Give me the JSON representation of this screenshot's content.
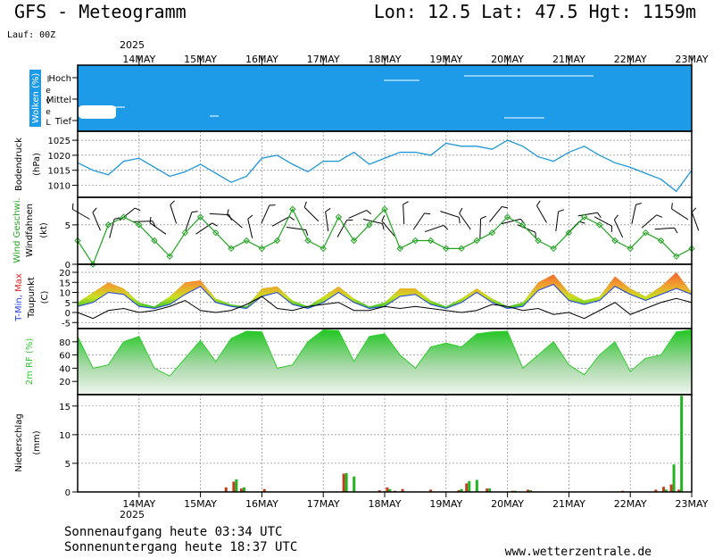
{
  "header": {
    "title": "GFS - Meteogramm",
    "location": "Lon: 12.5 Lat: 47.5 Hgt: 1159m",
    "run": "Lauf: 00Z",
    "year_top": "2025",
    "year_bottom": "2025"
  },
  "footer": {
    "sunrise": "Sonnenaufgang heute 03:34 UTC",
    "sunset": "Sonnenuntergang heute 18:37 UTC",
    "site": "www.wetterzentrale.de"
  },
  "colors": {
    "cloud": "#1e9be8",
    "pressure_line": "#1e96d8",
    "wind_line": "#22a322",
    "tmin": "#2040e0",
    "tmax": "#e02020",
    "dew": "#000000",
    "rh": "#2ecc2e",
    "precip_rain": "#c04020",
    "precip_conv": "#22b222"
  },
  "chart_data": [
    {
      "type": "heatmap",
      "panel": "clouds",
      "ylabel": "Wolken (%)",
      "ylabel2": "Level",
      "levels": [
        "Hoch",
        "Mittel",
        "Tief"
      ],
      "xlim": [
        0,
        240
      ],
      "x_tick_labels": [
        "14MAY",
        "15MAY",
        "16MAY",
        "17MAY",
        "18MAY",
        "19MAY",
        "20MAY",
        "21MAY",
        "22MAY",
        "23MAY"
      ]
    },
    {
      "type": "line",
      "panel": "pressure",
      "ylabel": "Bodendruck",
      "yunit": "(hPa)",
      "ylim": [
        1006,
        1028
      ],
      "yticks": [
        1010,
        1015,
        1020,
        1025
      ],
      "x": [
        0,
        6,
        12,
        18,
        24,
        30,
        36,
        42,
        48,
        54,
        60,
        66,
        72,
        78,
        84,
        90,
        96,
        102,
        108,
        114,
        120,
        126,
        132,
        138,
        144,
        150,
        156,
        162,
        168,
        174,
        180,
        186,
        192,
        198,
        204,
        210,
        216,
        222,
        228,
        234,
        240
      ],
      "values": [
        1017.5,
        1015,
        1013.5,
        1018,
        1019,
        1016,
        1013,
        1014.5,
        1017,
        1014,
        1011,
        1013,
        1019,
        1020,
        1017,
        1014.5,
        1018,
        1018,
        1021,
        1017,
        1019,
        1021,
        1021,
        1020,
        1024,
        1023,
        1023,
        1022,
        1025,
        1023,
        1019.5,
        1018,
        1021,
        1023,
        1020,
        1017.5,
        1016,
        1014,
        1012,
        1008,
        1015
      ]
    },
    {
      "type": "line",
      "panel": "wind",
      "ylabel": "Wind Geschwi.",
      "ylabel2": "Windfahnen",
      "yunit": "(kt)",
      "ylim": [
        0,
        8.5
      ],
      "yticks": [
        0,
        5
      ],
      "x": [
        0,
        6,
        12,
        18,
        24,
        30,
        36,
        42,
        48,
        54,
        60,
        66,
        72,
        78,
        84,
        90,
        96,
        102,
        108,
        114,
        120,
        126,
        132,
        138,
        144,
        150,
        156,
        162,
        168,
        174,
        180,
        186,
        192,
        198,
        204,
        210,
        216,
        222,
        228,
        234,
        240
      ],
      "values": [
        3,
        0,
        5,
        6,
        5,
        3,
        1,
        4,
        6,
        4,
        2,
        3,
        2,
        3,
        7,
        3,
        2,
        6,
        3,
        5,
        7,
        2,
        3,
        3,
        2,
        2,
        3,
        4,
        6,
        5,
        3,
        2,
        4,
        6,
        5,
        3,
        2,
        4,
        3,
        1,
        2
      ]
    },
    {
      "type": "area",
      "panel": "temperature",
      "ylabel": "T-Min, Max",
      "ylabel2": "Taupunkt",
      "yunit": "(C)",
      "ylim": [
        -8,
        24
      ],
      "yticks": [
        -5,
        0,
        5,
        10,
        15,
        20
      ],
      "x": [
        0,
        6,
        12,
        18,
        24,
        30,
        36,
        42,
        48,
        54,
        60,
        66,
        72,
        78,
        84,
        90,
        96,
        102,
        108,
        114,
        120,
        126,
        132,
        138,
        144,
        150,
        156,
        162,
        168,
        174,
        180,
        186,
        192,
        198,
        204,
        210,
        216,
        222,
        228,
        234,
        240
      ],
      "series": [
        {
          "name": "T-Min",
          "values": [
            3,
            5,
            10,
            9,
            3,
            2,
            4,
            9,
            13,
            5,
            3,
            2,
            8,
            10,
            4,
            2,
            5,
            10,
            5,
            2,
            3,
            8,
            9,
            4,
            2,
            5,
            10,
            5,
            2,
            3,
            11,
            14,
            6,
            4,
            6,
            13,
            9,
            6,
            9,
            12,
            9
          ]
        },
        {
          "name": "Max",
          "values": [
            5,
            10,
            15,
            12,
            5,
            3,
            8,
            15,
            16,
            7,
            4,
            3,
            12,
            13,
            6,
            3,
            8,
            13,
            7,
            3,
            5,
            12,
            12,
            6,
            3,
            7,
            12,
            7,
            3,
            5,
            15,
            19,
            10,
            6,
            8,
            18,
            12,
            8,
            13,
            20,
            10
          ]
        },
        {
          "name": "Taupunkt",
          "values": [
            0,
            -3,
            1,
            2,
            0,
            1,
            3,
            6,
            1,
            0,
            1,
            4,
            8,
            2,
            1,
            3,
            4,
            5,
            1,
            1,
            3,
            2,
            3,
            2,
            1,
            0,
            1,
            4,
            3,
            1,
            2,
            -1,
            0,
            -3,
            1,
            5,
            -1,
            2,
            5,
            7,
            5
          ]
        }
      ]
    },
    {
      "type": "area",
      "panel": "humidity",
      "ylabel": "2m RF (%)",
      "ylim": [
        0,
        100
      ],
      "yticks": [
        20,
        40,
        60,
        80
      ],
      "x": [
        0,
        6,
        12,
        18,
        24,
        30,
        36,
        42,
        48,
        54,
        60,
        66,
        72,
        78,
        84,
        90,
        96,
        102,
        108,
        114,
        120,
        126,
        132,
        138,
        144,
        150,
        156,
        162,
        168,
        174,
        180,
        186,
        192,
        198,
        204,
        210,
        216,
        222,
        228,
        234,
        240
      ],
      "values": [
        88,
        40,
        45,
        80,
        88,
        40,
        28,
        55,
        82,
        50,
        85,
        96,
        95,
        40,
        45,
        80,
        98,
        97,
        50,
        88,
        92,
        60,
        40,
        72,
        78,
        72,
        92,
        95,
        96,
        40,
        60,
        80,
        45,
        30,
        60,
        80,
        35,
        55,
        60,
        95,
        98
      ]
    },
    {
      "type": "bar",
      "panel": "precipitation",
      "ylabel": "Niederschlag",
      "yunit": "(mm)",
      "ylim": [
        0,
        17
      ],
      "yticks": [
        0,
        5,
        10,
        15
      ],
      "series": [
        {
          "name": "rain",
          "x": [
            58,
            61,
            64,
            73,
            104,
            118,
            121,
            124,
            127,
            138,
            149,
            152,
            160,
            170,
            176,
            213,
            226,
            229,
            232,
            235
          ],
          "values": [
            0.8,
            1.8,
            0.6,
            0.5,
            3.2,
            0.3,
            0.8,
            0.2,
            0.5,
            0.4,
            0.3,
            1.5,
            0.6,
            0.2,
            0.4,
            0.2,
            0.4,
            0.9,
            1.3,
            0.4
          ]
        },
        {
          "name": "conv",
          "x": [
            61,
            64,
            104,
            107,
            121,
            149,
            152,
            155,
            160,
            170,
            176,
            229,
            232,
            235
          ],
          "values": [
            2.2,
            0.8,
            3.3,
            2.7,
            0.5,
            0.5,
            1.9,
            2.1,
            0.6,
            0.2,
            0.3,
            0.4,
            4.8,
            16.8
          ]
        }
      ]
    }
  ]
}
